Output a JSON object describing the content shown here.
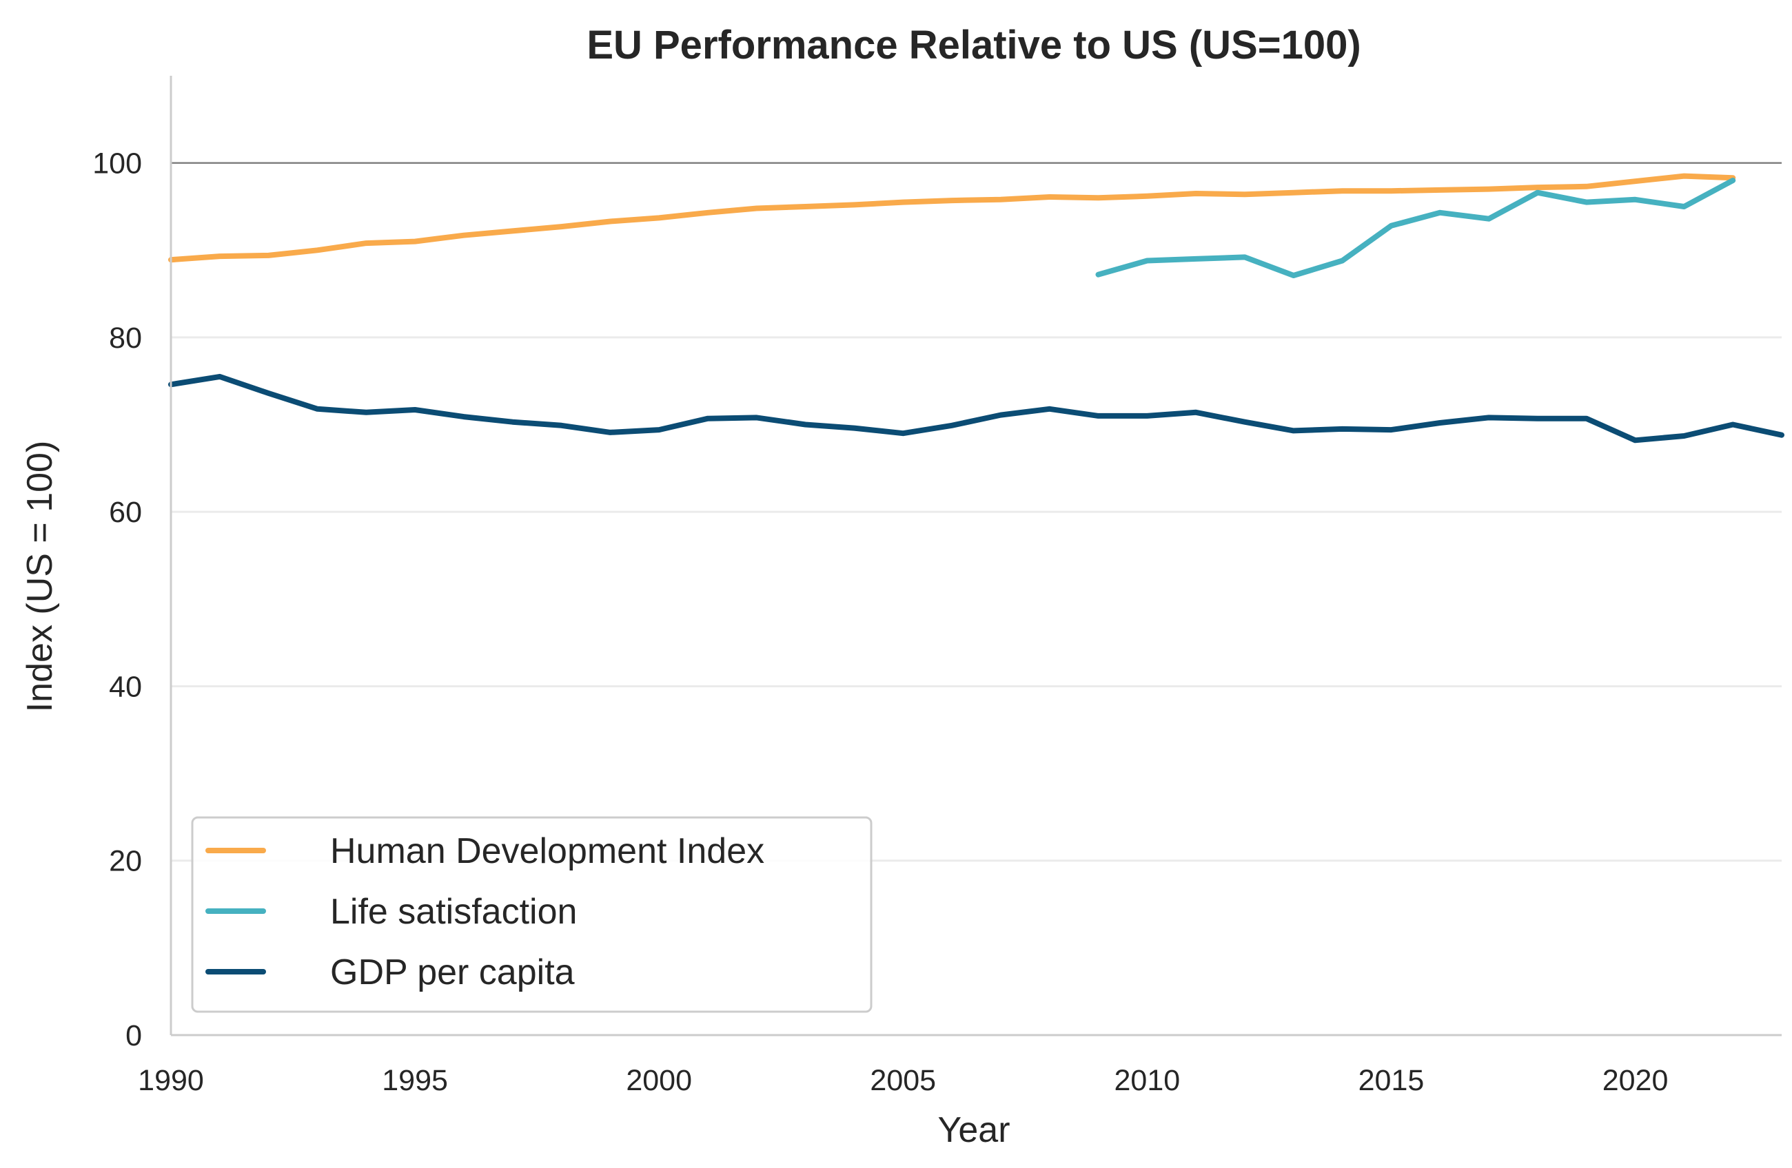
{
  "chart_data": {
    "type": "line",
    "title": "EU Performance Relative to US (US=100)",
    "xlabel": "Year",
    "ylabel": "Index (US = 100)",
    "xlim": [
      1990,
      2023
    ],
    "ylim": [
      0,
      110
    ],
    "xticks": [
      1990,
      1995,
      2000,
      2005,
      2010,
      2015,
      2020
    ],
    "yticks": [
      0,
      20,
      40,
      60,
      80,
      100
    ],
    "reference_line": 100,
    "grid": "horizontal",
    "legend": "lower-left",
    "series": [
      {
        "name": "Human Development Index",
        "color": "#f9aa4b",
        "x": [
          1990,
          1991,
          1992,
          1993,
          1994,
          1995,
          1996,
          1997,
          1998,
          1999,
          2000,
          2001,
          2002,
          2003,
          2004,
          2005,
          2006,
          2007,
          2008,
          2009,
          2010,
          2011,
          2012,
          2013,
          2014,
          2015,
          2016,
          2017,
          2018,
          2019,
          2020,
          2021,
          2022
        ],
        "values": [
          88.9,
          89.3,
          89.4,
          90.0,
          90.8,
          91.0,
          91.7,
          92.2,
          92.7,
          93.3,
          93.7,
          94.3,
          94.8,
          95.0,
          95.2,
          95.5,
          95.7,
          95.8,
          96.1,
          96.0,
          96.2,
          96.5,
          96.4,
          96.6,
          96.8,
          96.8,
          96.9,
          97.0,
          97.2,
          97.3,
          97.9,
          98.5,
          98.3
        ]
      },
      {
        "name": "Life satisfaction",
        "color": "#46b1c0",
        "x": [
          2009,
          2010,
          2011,
          2012,
          2013,
          2014,
          2015,
          2016,
          2017,
          2018,
          2019,
          2020,
          2021,
          2022
        ],
        "values": [
          87.2,
          88.8,
          89.0,
          89.2,
          87.1,
          88.8,
          92.8,
          94.3,
          93.6,
          96.6,
          95.5,
          95.8,
          95.0,
          98.0
        ]
      },
      {
        "name": "GDP per capita",
        "color": "#0b4c74",
        "x": [
          1990,
          1991,
          1992,
          1993,
          1994,
          1995,
          1996,
          1997,
          1998,
          1999,
          2000,
          2001,
          2002,
          2003,
          2004,
          2005,
          2006,
          2007,
          2008,
          2009,
          2010,
          2011,
          2012,
          2013,
          2014,
          2015,
          2016,
          2017,
          2018,
          2019,
          2020,
          2021,
          2022,
          2023
        ],
        "values": [
          74.6,
          75.5,
          73.6,
          71.8,
          71.4,
          71.7,
          70.9,
          70.3,
          69.9,
          69.1,
          69.4,
          70.7,
          70.8,
          70.0,
          69.6,
          69.0,
          69.9,
          71.1,
          71.8,
          71.0,
          71.0,
          71.4,
          70.3,
          69.3,
          69.5,
          69.4,
          70.2,
          70.8,
          70.7,
          70.7,
          68.2,
          68.7,
          70.0,
          68.8
        ]
      }
    ]
  }
}
